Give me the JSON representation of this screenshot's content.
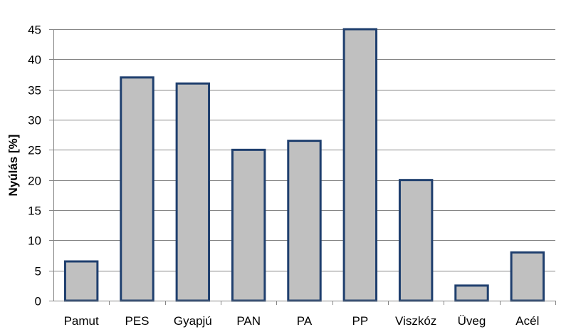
{
  "chart_data": {
    "type": "bar",
    "categories": [
      "Pamut",
      "PES",
      "Gyapjú",
      "PAN",
      "PA",
      "PP",
      "Viszkóz",
      "Üveg",
      "Acél"
    ],
    "values": [
      6.5,
      37,
      36,
      25,
      26.5,
      45,
      20,
      2.5,
      8
    ],
    "xlabel": "",
    "ylabel": "Nyúlás [%]",
    "ylim": [
      0,
      45
    ],
    "yticks": [
      0,
      5,
      10,
      15,
      20,
      25,
      30,
      35,
      40,
      45
    ],
    "grid": true,
    "legend": "none",
    "colors": {
      "bar_fill": "#c0c0c0",
      "bar_stroke": "#1f3f6e",
      "grid": "#868686",
      "axis": "#868686"
    }
  }
}
